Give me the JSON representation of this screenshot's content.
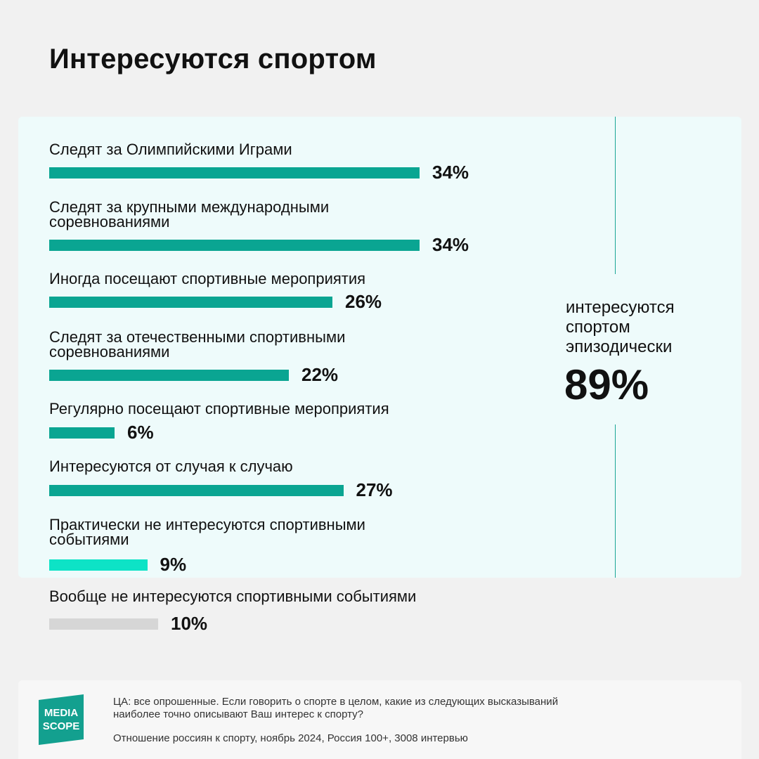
{
  "title": "Интересуются спортом",
  "chart_data": {
    "type": "bar",
    "orientation": "horizontal",
    "max_value": 34,
    "categories": [
      "Следят за Олимпийскими Играми",
      "Следят за крупными международными соревнованиями",
      "Иногда посещают спортивные мероприятия",
      "Следят за отечественными спортивными соревнованиями",
      "Регулярно посещают спортивные мероприятия",
      "Интересуются от случая к случаю",
      "Практически не интересуются спортивными событиями",
      "Вообще не интересуются спортивными событиями"
    ],
    "values": [
      34,
      34,
      26,
      22,
      6,
      27,
      9,
      10
    ],
    "value_labels": [
      "34%",
      "34%",
      "26%",
      "22%",
      "6%",
      "27%",
      "9%",
      "10%"
    ],
    "bar_colors": [
      "#0aa592",
      "#0aa592",
      "#0aa592",
      "#0aa592",
      "#0aa592",
      "#0aa592",
      "#0de3c6",
      "#d6d6d6"
    ],
    "summary": {
      "label": "интересуются спортом эпизодически",
      "value": "89%"
    }
  },
  "footer": {
    "logo_text_top": "MEDIA",
    "logo_text_bottom": "SCOPE",
    "question": "ЦА: все опрошенные. Если говорить о спорте в целом, какие из следующих высказываний наиболее точно описывают Ваш интерес к спорту?",
    "source": "Отношение россиян к спорту, ноябрь 2024, Россия 100+, 3008 интервью"
  },
  "colors": {
    "accent": "#0aa592",
    "accent_light": "#0de3c6",
    "neutral": "#d6d6d6",
    "panel": "#eefbfb",
    "logo": "#13a08f"
  }
}
